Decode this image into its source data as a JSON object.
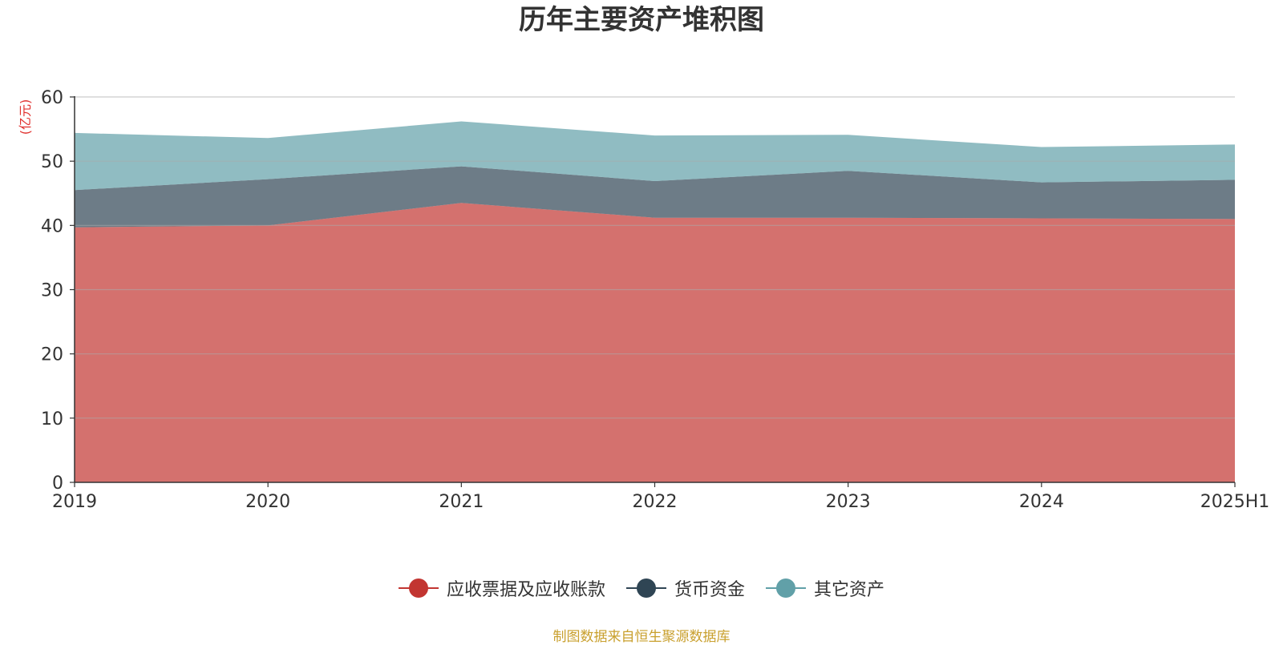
{
  "chart_data": {
    "type": "area",
    "stacked": true,
    "title": "历年主要资产堆积图",
    "ylabel": "亿元",
    "xlabel": "",
    "categories": [
      "2019",
      "2020",
      "2021",
      "2022",
      "2023",
      "2024",
      "2025H1"
    ],
    "ylim": [
      0,
      60
    ],
    "yticks": [
      0,
      10,
      20,
      30,
      40,
      50,
      60
    ],
    "grid": true,
    "legend_position": "bottom-center",
    "series": [
      {
        "name": "应收票据及应收账款",
        "values": [
          39.7,
          40.0,
          43.5,
          41.2,
          41.2,
          41.1,
          41.0
        ],
        "color": "#c23531"
      },
      {
        "name": "货币资金",
        "values": [
          5.8,
          7.2,
          5.7,
          5.7,
          7.3,
          5.6,
          6.1
        ],
        "color": "#2f4554"
      },
      {
        "name": "其它资产",
        "values": [
          8.9,
          6.4,
          7.0,
          7.1,
          5.6,
          5.5,
          5.5
        ],
        "color": "#61a0a8"
      }
    ]
  },
  "source_text": "制图数据来自恒生聚源数据库"
}
